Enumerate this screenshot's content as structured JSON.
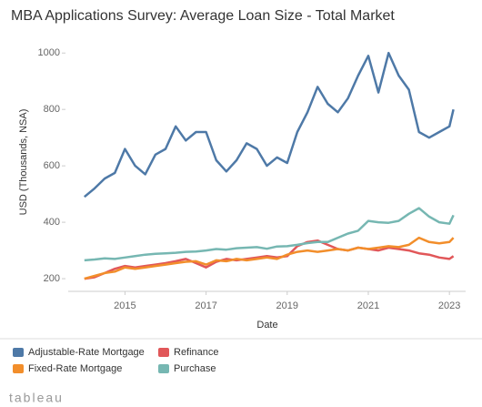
{
  "chart_data": {
    "type": "line",
    "title": "MBA Applications Survey: Average Loan Size - Total Market",
    "y_label": "USD (Thousands, NSA)",
    "x_label": "Date",
    "x": [
      2014,
      2014.25,
      2014.5,
      2014.75,
      2015,
      2015.25,
      2015.5,
      2015.75,
      2016,
      2016.25,
      2016.5,
      2016.75,
      2017,
      2017.25,
      2017.5,
      2017.75,
      2018,
      2018.25,
      2018.5,
      2018.75,
      2019,
      2019.25,
      2019.5,
      2019.75,
      2020,
      2020.25,
      2020.5,
      2020.75,
      2021,
      2021.25,
      2021.5,
      2021.75,
      2022,
      2022.25,
      2022.5,
      2022.75,
      2023,
      2023.1
    ],
    "series": [
      {
        "name": "Adjustable-Rate Mortgage",
        "color": "#4e79a7",
        "values": [
          490,
          520,
          555,
          575,
          660,
          600,
          570,
          640,
          660,
          740,
          690,
          720,
          720,
          620,
          580,
          620,
          680,
          660,
          600,
          630,
          610,
          720,
          790,
          880,
          820,
          790,
          840,
          920,
          990,
          860,
          1000,
          920,
          870,
          720,
          700,
          720,
          740,
          800
        ]
      },
      {
        "name": "Refinance",
        "color": "#e15759",
        "values": [
          200,
          205,
          220,
          235,
          245,
          240,
          245,
          250,
          255,
          262,
          270,
          255,
          240,
          260,
          270,
          265,
          270,
          275,
          280,
          275,
          280,
          315,
          330,
          335,
          320,
          305,
          300,
          310,
          305,
          300,
          310,
          305,
          300,
          290,
          285,
          275,
          270,
          280
        ]
      },
      {
        "name": "Fixed-Rate Mortgage",
        "color": "#f28e2b",
        "values": [
          200,
          210,
          220,
          225,
          240,
          235,
          240,
          245,
          250,
          255,
          260,
          262,
          250,
          265,
          262,
          270,
          265,
          270,
          275,
          270,
          285,
          295,
          300,
          295,
          300,
          305,
          300,
          310,
          305,
          310,
          315,
          312,
          320,
          345,
          330,
          325,
          330,
          345
        ]
      },
      {
        "name": "Purchase",
        "color": "#76b7b2",
        "values": [
          265,
          268,
          272,
          270,
          275,
          280,
          285,
          288,
          290,
          292,
          295,
          296,
          300,
          305,
          303,
          308,
          310,
          312,
          306,
          314,
          315,
          320,
          326,
          330,
          330,
          345,
          360,
          370,
          405,
          400,
          398,
          405,
          430,
          450,
          420,
          400,
          395,
          425
        ]
      }
    ],
    "xlim": [
      2013.6,
      2023.4
    ],
    "xticks": [
      2015,
      2017,
      2019,
      2021,
      2023
    ],
    "ylim": [
      155,
      1075
    ],
    "yticks": [
      200,
      400,
      600,
      800,
      1000
    ],
    "footer": "tableau"
  }
}
